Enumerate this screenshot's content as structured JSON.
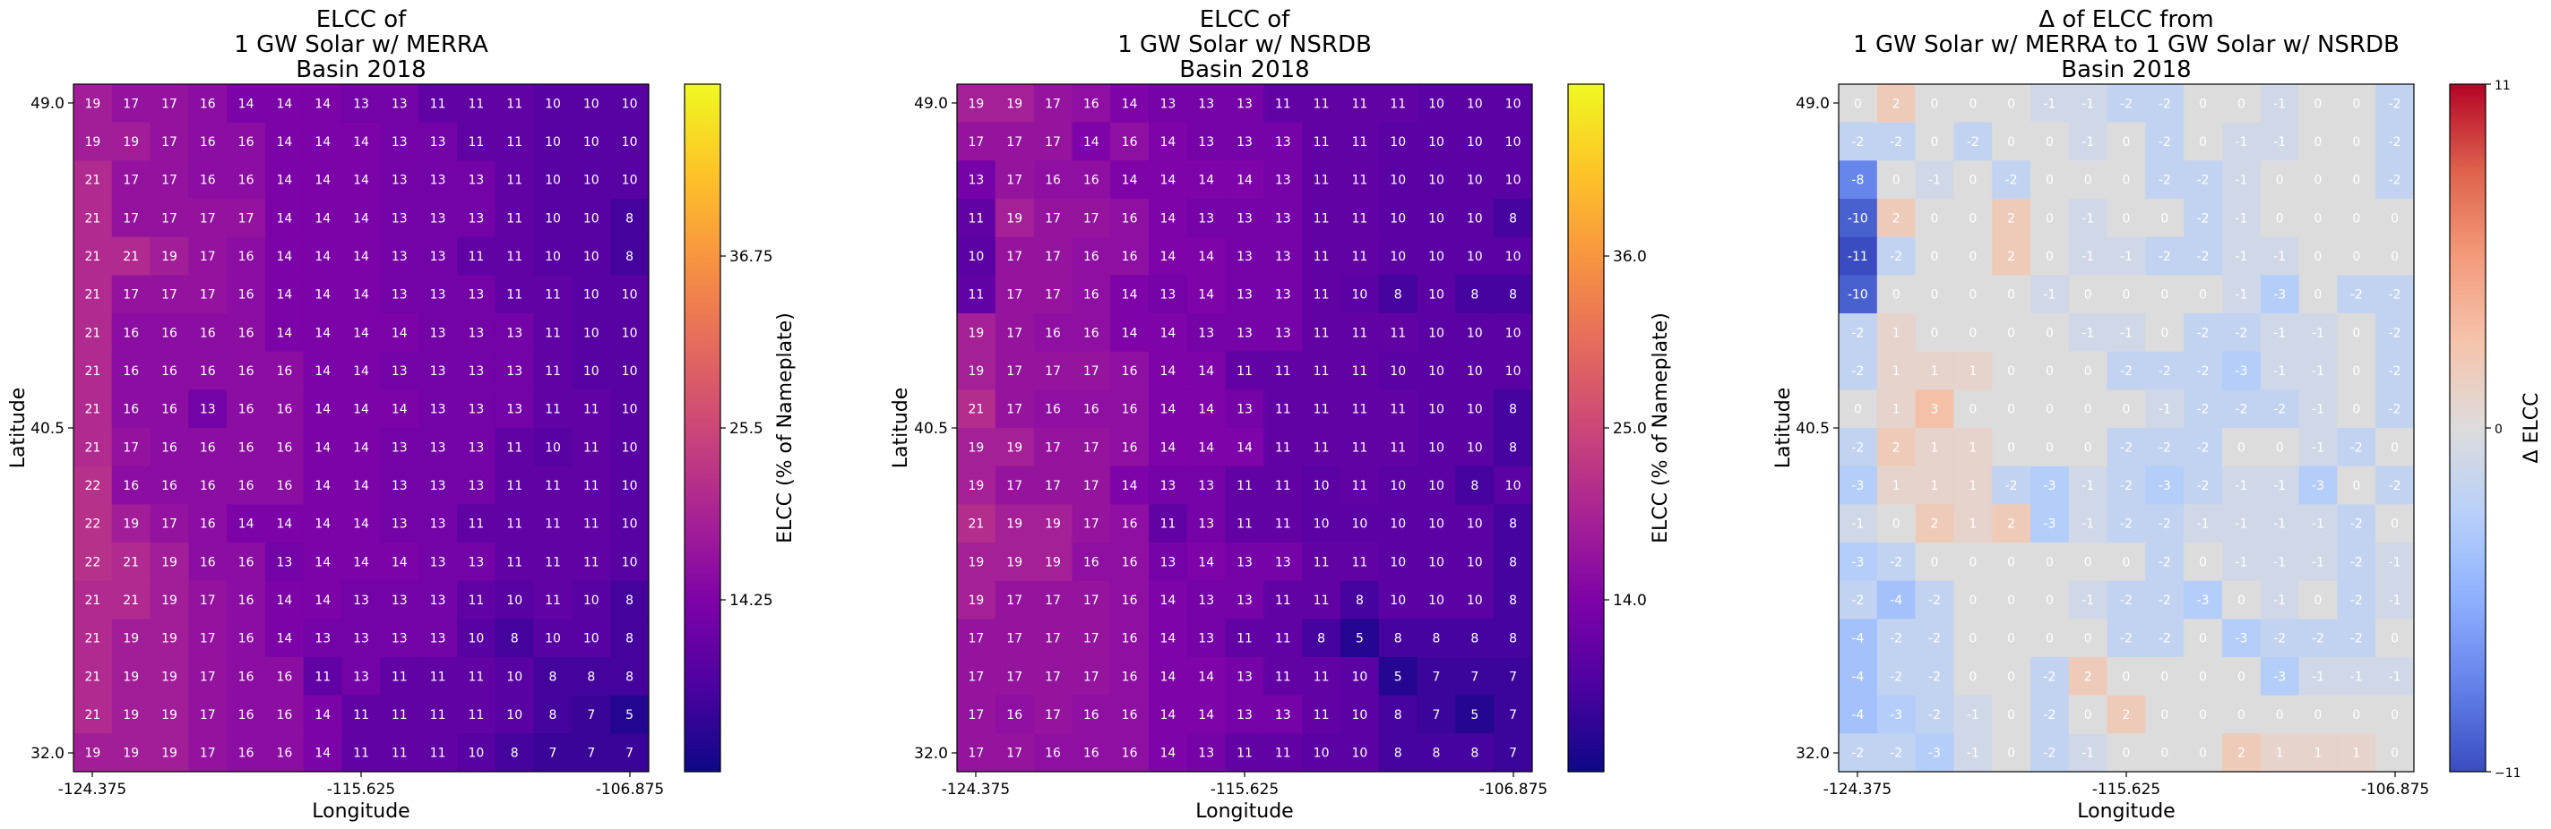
{
  "chart_data": [
    {
      "type": "heatmap",
      "title": [
        "ELCC of",
        "1 GW Solar w/ MERRA",
        "Basin 2018"
      ],
      "xlabel": "Longitude",
      "ylabel": "Latitude",
      "x_tick_labels": [
        "-124.375",
        "-115.625",
        "-106.875"
      ],
      "y_tick_labels": [
        "49.0",
        "40.5",
        "32.0"
      ],
      "colormap": "plasma",
      "colorbar": {
        "label": "ELCC (% of Nameplate)",
        "vmin": 3,
        "vmax": 48,
        "ticks": [
          "14.25",
          "25.5",
          "36.75"
        ]
      },
      "values": [
        [
          19,
          17,
          17,
          16,
          14,
          14,
          14,
          13,
          13,
          11,
          11,
          11,
          10,
          10,
          10
        ],
        [
          19,
          19,
          17,
          16,
          16,
          14,
          14,
          14,
          13,
          13,
          11,
          11,
          10,
          10,
          10
        ],
        [
          21,
          17,
          17,
          16,
          16,
          14,
          14,
          14,
          13,
          13,
          13,
          11,
          10,
          10,
          10
        ],
        [
          21,
          17,
          17,
          17,
          17,
          14,
          14,
          14,
          13,
          13,
          13,
          11,
          10,
          10,
          8
        ],
        [
          21,
          21,
          19,
          17,
          16,
          14,
          14,
          14,
          13,
          13,
          11,
          11,
          10,
          10,
          8
        ],
        [
          21,
          17,
          17,
          17,
          16,
          14,
          14,
          14,
          13,
          13,
          13,
          11,
          11,
          10,
          10
        ],
        [
          21,
          16,
          16,
          16,
          16,
          14,
          14,
          14,
          14,
          13,
          13,
          13,
          11,
          10,
          10
        ],
        [
          21,
          16,
          16,
          16,
          16,
          16,
          14,
          14,
          13,
          13,
          13,
          13,
          11,
          10,
          10
        ],
        [
          21,
          16,
          16,
          13,
          16,
          16,
          14,
          14,
          14,
          13,
          13,
          13,
          11,
          11,
          10
        ],
        [
          21,
          17,
          16,
          16,
          16,
          16,
          14,
          14,
          13,
          13,
          13,
          11,
          10,
          11,
          10
        ],
        [
          22,
          16,
          16,
          16,
          16,
          16,
          14,
          14,
          13,
          13,
          13,
          11,
          11,
          11,
          10
        ],
        [
          22,
          19,
          17,
          16,
          14,
          14,
          14,
          14,
          13,
          13,
          11,
          11,
          11,
          11,
          10
        ],
        [
          22,
          21,
          19,
          16,
          16,
          13,
          14,
          14,
          14,
          13,
          13,
          11,
          11,
          11,
          10
        ],
        [
          21,
          21,
          19,
          17,
          16,
          14,
          14,
          13,
          13,
          13,
          11,
          10,
          11,
          10,
          8
        ],
        [
          21,
          19,
          19,
          17,
          16,
          14,
          13,
          13,
          13,
          13,
          10,
          8,
          10,
          10,
          8
        ],
        [
          21,
          19,
          19,
          17,
          16,
          16,
          11,
          13,
          11,
          11,
          11,
          10,
          8,
          8,
          8
        ],
        [
          21,
          19,
          19,
          17,
          16,
          16,
          14,
          11,
          11,
          11,
          11,
          10,
          8,
          7,
          5
        ],
        [
          19,
          19,
          19,
          17,
          16,
          16,
          14,
          11,
          11,
          11,
          10,
          8,
          7,
          7,
          7
        ]
      ]
    },
    {
      "type": "heatmap",
      "title": [
        "ELCC of",
        "1 GW Solar w/ NSRDB",
        "Basin 2018"
      ],
      "xlabel": "Longitude",
      "ylabel": "Latitude",
      "x_tick_labels": [
        "-124.375",
        "-115.625",
        "-106.875"
      ],
      "y_tick_labels": [
        "49.0",
        "40.5",
        "32.0"
      ],
      "colormap": "plasma",
      "colorbar": {
        "label": "ELCC (% of Nameplate)",
        "vmin": 3,
        "vmax": 47,
        "ticks": [
          "14.0",
          "25.0",
          "36.0"
        ]
      },
      "values": [
        [
          19,
          19,
          17,
          16,
          14,
          13,
          13,
          13,
          11,
          11,
          11,
          11,
          10,
          10,
          10
        ],
        [
          17,
          17,
          17,
          14,
          16,
          14,
          13,
          13,
          13,
          11,
          11,
          10,
          10,
          10,
          10
        ],
        [
          13,
          17,
          16,
          16,
          14,
          14,
          14,
          14,
          13,
          11,
          11,
          10,
          10,
          10,
          10
        ],
        [
          11,
          19,
          17,
          17,
          16,
          14,
          13,
          13,
          13,
          11,
          11,
          10,
          10,
          10,
          8
        ],
        [
          10,
          17,
          17,
          16,
          16,
          14,
          14,
          13,
          13,
          11,
          11,
          10,
          10,
          10,
          10
        ],
        [
          11,
          17,
          17,
          16,
          14,
          13,
          14,
          13,
          13,
          11,
          10,
          8,
          10,
          8,
          8
        ],
        [
          19,
          17,
          16,
          16,
          14,
          14,
          13,
          13,
          13,
          11,
          11,
          11,
          10,
          10,
          10
        ],
        [
          19,
          17,
          17,
          17,
          16,
          14,
          14,
          11,
          11,
          11,
          11,
          10,
          10,
          10,
          10
        ],
        [
          21,
          17,
          16,
          16,
          16,
          14,
          14,
          13,
          11,
          11,
          11,
          11,
          10,
          10,
          8
        ],
        [
          19,
          19,
          17,
          17,
          16,
          14,
          14,
          14,
          11,
          11,
          11,
          11,
          10,
          10,
          8
        ],
        [
          19,
          17,
          17,
          17,
          14,
          13,
          13,
          11,
          11,
          10,
          11,
          10,
          10,
          8,
          10
        ],
        [
          21,
          19,
          19,
          17,
          16,
          11,
          13,
          11,
          11,
          10,
          10,
          10,
          10,
          10,
          8
        ],
        [
          19,
          19,
          19,
          16,
          16,
          13,
          14,
          13,
          13,
          11,
          11,
          10,
          10,
          10,
          8
        ],
        [
          19,
          17,
          17,
          17,
          16,
          14,
          13,
          13,
          11,
          11,
          8,
          10,
          10,
          10,
          8
        ],
        [
          17,
          17,
          17,
          17,
          16,
          14,
          13,
          11,
          11,
          8,
          5,
          8,
          8,
          8,
          8
        ],
        [
          17,
          17,
          17,
          17,
          16,
          14,
          14,
          13,
          11,
          11,
          10,
          5,
          7,
          7,
          7
        ],
        [
          17,
          16,
          17,
          16,
          16,
          14,
          14,
          13,
          13,
          11,
          10,
          8,
          7,
          5,
          7
        ],
        [
          17,
          17,
          16,
          16,
          16,
          14,
          13,
          11,
          11,
          10,
          10,
          8,
          8,
          8,
          7
        ]
      ]
    },
    {
      "type": "heatmap",
      "title": [
        "Δ of ELCC from",
        "1 GW Solar w/ MERRA to 1 GW Solar w/ NSRDB",
        "Basin 2018"
      ],
      "xlabel": "Longitude",
      "ylabel": "Latitude",
      "x_tick_labels": [
        "-124.375",
        "-115.625",
        "-106.875"
      ],
      "y_tick_labels": [
        "49.0",
        "40.5",
        "32.0"
      ],
      "colormap": "coolwarm",
      "colorbar": {
        "label": "Δ ELCC",
        "vmin": -11,
        "vmax": 11,
        "ticks": [
          "11",
          "0",
          "−11"
        ]
      },
      "values": [
        [
          0,
          2,
          0,
          0,
          0,
          -1,
          -1,
          -2,
          -2,
          0,
          0,
          -1,
          0,
          0,
          -2
        ],
        [
          -2,
          -2,
          0,
          -2,
          0,
          0,
          -1,
          0,
          -2,
          0,
          -1,
          -1,
          0,
          0,
          -2
        ],
        [
          -8,
          0,
          -1,
          0,
          -2,
          0,
          0,
          0,
          -2,
          -2,
          -1,
          0,
          0,
          0,
          -2
        ],
        [
          -10,
          2,
          0,
          0,
          2,
          0,
          -1,
          0,
          0,
          -2,
          -1,
          0,
          0,
          0,
          0
        ],
        [
          -11,
          -2,
          0,
          0,
          2,
          0,
          -1,
          -1,
          -2,
          -2,
          -1,
          -1,
          0,
          0,
          0
        ],
        [
          -10,
          0,
          0,
          0,
          0,
          -1,
          0,
          0,
          0,
          0,
          -1,
          -3,
          0,
          -2,
          -2
        ],
        [
          -2,
          1,
          0,
          0,
          0,
          0,
          -1,
          -1,
          0,
          -2,
          -2,
          -1,
          -1,
          0,
          -2
        ],
        [
          -2,
          1,
          1,
          1,
          0,
          0,
          0,
          -2,
          -2,
          -2,
          -3,
          -1,
          -1,
          0,
          -2
        ],
        [
          0,
          1,
          3,
          0,
          0,
          0,
          0,
          0,
          -1,
          -2,
          -2,
          -2,
          -1,
          0,
          -2
        ],
        [
          -2,
          2,
          1,
          1,
          0,
          0,
          0,
          -2,
          -2,
          -2,
          0,
          0,
          -1,
          -2,
          0
        ],
        [
          -3,
          1,
          1,
          1,
          -2,
          -3,
          -1,
          -2,
          -3,
          -2,
          -1,
          -1,
          -3,
          0,
          -2
        ],
        [
          -1,
          0,
          2,
          1,
          2,
          -3,
          -1,
          -2,
          -2,
          -1,
          -1,
          -1,
          -1,
          -2,
          0
        ],
        [
          -3,
          -2,
          0,
          0,
          0,
          0,
          0,
          0,
          -2,
          0,
          -1,
          -1,
          -1,
          -2,
          -1
        ],
        [
          -2,
          -4,
          -2,
          0,
          0,
          0,
          -1,
          -2,
          -2,
          -3,
          0,
          -1,
          0,
          -2,
          -1
        ],
        [
          -4,
          -2,
          -2,
          0,
          0,
          0,
          0,
          -2,
          -2,
          0,
          -3,
          -2,
          -2,
          -2,
          0
        ],
        [
          -4,
          -2,
          -2,
          0,
          0,
          -2,
          2,
          0,
          0,
          0,
          0,
          -3,
          -1,
          -1,
          -1
        ],
        [
          -4,
          -3,
          -2,
          -1,
          0,
          -2,
          0,
          2,
          0,
          0,
          0,
          0,
          0,
          0,
          0
        ],
        [
          -2,
          -2,
          -3,
          -1,
          0,
          -2,
          -1,
          0,
          0,
          0,
          2,
          1,
          1,
          1,
          0
        ]
      ]
    }
  ]
}
